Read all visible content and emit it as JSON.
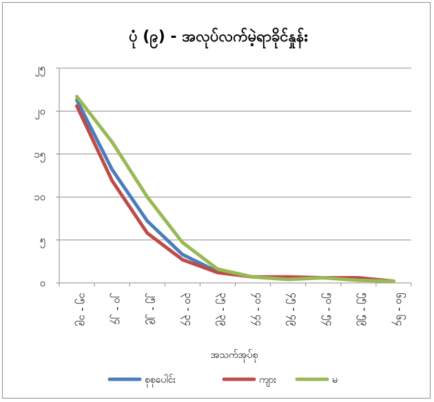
{
  "chart_data": {
    "type": "line",
    "title": "ပုံ (၉) - အလုပ်လက်မဲ့ရာခိုင်နှုန်း",
    "xlabel": "အသက်အုပ်စု",
    "ylabel": "",
    "categories": [
      "၁၅ - ၁၉",
      "၂၀ - ၂၄",
      "၂၅ - ၂၉",
      "၃၀ - ၃၄",
      "၃၅ - ၃၉",
      "၄၀ - ၄၄",
      "၄၅ - ၄၉",
      "၅၀ - ၅၄",
      "၅၅ - ၅၉",
      "၆၀ - ၆၄"
    ],
    "y_ticks": [
      "၀",
      "၅",
      "၁၀",
      "၁၅",
      "၂၀",
      "၂၅"
    ],
    "ylim": [
      0,
      25
    ],
    "grid": true,
    "legend_position": "bottom",
    "series": [
      {
        "name": "စုစုပေါင်း",
        "color": "#4a7ebb",
        "values": [
          21.3,
          13.2,
          7.2,
          3.3,
          1.3,
          0.7,
          0.6,
          0.6,
          0.5,
          0.2
        ]
      },
      {
        "name": "ကျား",
        "color": "#be4b48",
        "values": [
          20.6,
          11.9,
          5.8,
          2.7,
          1.2,
          0.7,
          0.7,
          0.6,
          0.6,
          0.2
        ]
      },
      {
        "name": "မ",
        "color": "#98b954",
        "values": [
          21.7,
          16.4,
          10.0,
          4.7,
          1.6,
          0.7,
          0.4,
          0.6,
          0.3,
          0.2
        ]
      }
    ]
  }
}
